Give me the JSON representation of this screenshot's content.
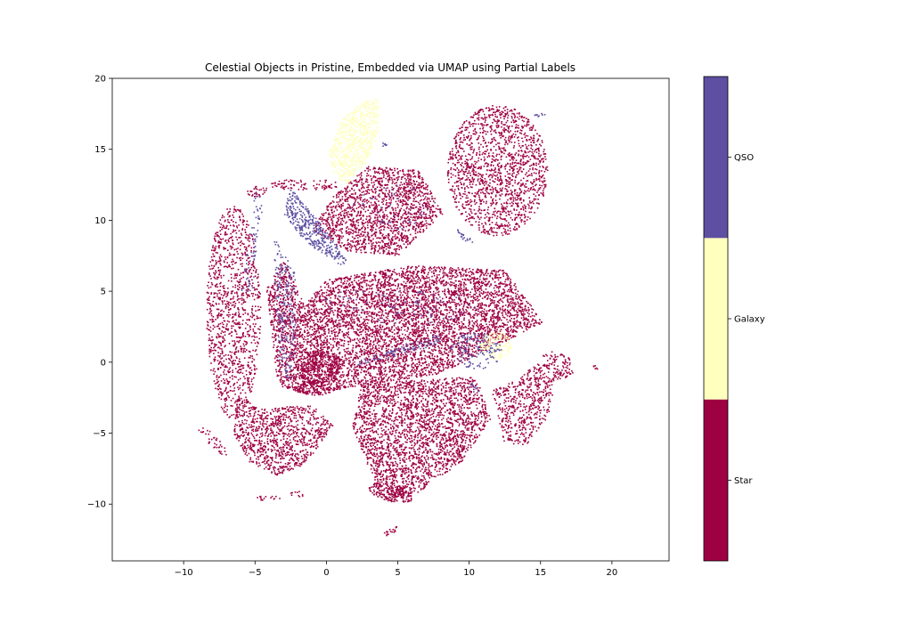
{
  "chart_data": {
    "type": "scatter",
    "title": "Celestial Objects in Pristine, Embedded via UMAP using Partial Labels",
    "xlabel": "",
    "ylabel": "",
    "xlim": [
      -15,
      24
    ],
    "ylim": [
      -14,
      20
    ],
    "x_ticks": [
      -10,
      -5,
      0,
      5,
      10,
      15,
      20
    ],
    "y_ticks": [
      -10,
      -5,
      0,
      5,
      10,
      15,
      20
    ],
    "x_tick_labels": [
      "−10",
      "−5",
      "0",
      "5",
      "10",
      "15",
      "20"
    ],
    "y_tick_labels": [
      "−10",
      "−5",
      "0",
      "5",
      "10",
      "15",
      "20"
    ],
    "grid": false,
    "colorbar": {
      "orientation": "vertical",
      "position": "right",
      "classes": [
        {
          "label": "Star",
          "color": "#9e0142"
        },
        {
          "label": "Galaxy",
          "color": "#ffffbe"
        },
        {
          "label": "QSO",
          "color": "#5e4fa2"
        }
      ]
    },
    "series": [
      {
        "class": "Star",
        "color": "#9e0142",
        "clusters": [
          {
            "shape": "ellipse",
            "center": [
              -6.5,
              3.5
            ],
            "radii": [
              1.9,
              7.5
            ],
            "rotation": 0,
            "density": 0.5
          },
          {
            "shape": "polygon",
            "points": [
              [
                -4.2,
                5.2
              ],
              [
                -3.4,
                -1.6
              ],
              [
                -1.5,
                -2.3
              ],
              [
                8,
                -0.8
              ],
              [
                15.2,
                2.8
              ],
              [
                12.5,
                6.5
              ],
              [
                6,
                6.8
              ],
              [
                0,
                5.8
              ],
              [
                -1.5,
                4
              ],
              [
                -3,
                7.2
              ]
            ],
            "density": 0.9
          },
          {
            "shape": "polygon",
            "points": [
              [
                -1,
                9.3
              ],
              [
                0.5,
                11.8
              ],
              [
                3,
                13.8
              ],
              [
                6.5,
                13.5
              ],
              [
                8.2,
                10.5
              ],
              [
                5,
                7.5
              ],
              [
                1.5,
                7.8
              ]
            ],
            "density": 0.8
          },
          {
            "shape": "ellipse",
            "center": [
              12,
              13.5
            ],
            "radii": [
              3.5,
              4.6
            ],
            "rotation": 0,
            "density": 0.6
          },
          {
            "shape": "polygon",
            "points": [
              [
                -6.2,
                -2.3
              ],
              [
                -4.5,
                -3.3
              ],
              [
                -1,
                -3
              ],
              [
                0.5,
                -4.5
              ],
              [
                -1.5,
                -7.2
              ],
              [
                -3.5,
                -8
              ],
              [
                -5.5,
                -7
              ],
              [
                -6.5,
                -5
              ]
            ],
            "density": 0.75
          },
          {
            "shape": "polygon",
            "points": [
              [
                2.5,
                -1.5
              ],
              [
                10.5,
                -1
              ],
              [
                11.5,
                -4
              ],
              [
                9.5,
                -7
              ],
              [
                6,
                -9.5
              ],
              [
                4,
                -9.8
              ],
              [
                3,
                -7.5
              ],
              [
                1.8,
                -4.5
              ]
            ],
            "density": 0.8
          },
          {
            "shape": "polygon",
            "points": [
              [
                11.6,
                -2
              ],
              [
                13.5,
                -1.2
              ],
              [
                15.5,
                0.8
              ],
              [
                17,
                0.5
              ],
              [
                17.3,
                -0.8
              ],
              [
                16,
                -1.5
              ],
              [
                15.5,
                -4
              ],
              [
                14,
                -5.8
              ],
              [
                12.5,
                -5.8
              ]
            ],
            "density": 0.6
          },
          {
            "shape": "ellipse",
            "center": [
              -0.8,
              -1.8
            ],
            "radii": [
              1.4,
              0.55
            ],
            "rotation": 0,
            "density": 1.0
          },
          {
            "shape": "ellipse",
            "center": [
              -0.5,
              -0.3
            ],
            "radii": [
              1.6,
              1.2
            ],
            "rotation": 0,
            "density": 1.0
          },
          {
            "shape": "ellipse",
            "center": [
              4.5,
              -9.2
            ],
            "radii": [
              1.6,
              0.6
            ],
            "rotation": -15,
            "density": 1.0
          },
          {
            "shape": "ellipse",
            "center": [
              4.5,
              -11.9
            ],
            "radii": [
              0.55,
              0.22
            ],
            "rotation": 30,
            "density": 1.0
          },
          {
            "shape": "ellipse",
            "center": [
              -8,
              -5.5
            ],
            "radii": [
              1.6,
              0.35
            ],
            "rotation": -45,
            "density": 0.4
          },
          {
            "shape": "ellipse",
            "center": [
              -4,
              -9.6
            ],
            "radii": [
              0.9,
              0.2
            ],
            "rotation": 0,
            "density": 0.5
          },
          {
            "shape": "ellipse",
            "center": [
              -2,
              -9.3
            ],
            "radii": [
              0.6,
              0.2
            ],
            "rotation": 0,
            "density": 0.5
          },
          {
            "shape": "ellipse",
            "center": [
              18.8,
              -0.4
            ],
            "radii": [
              0.25,
              0.15
            ],
            "rotation": 0,
            "density": 1.0
          },
          {
            "shape": "ellipse",
            "center": [
              -4.8,
              12
            ],
            "radii": [
              0.8,
              0.4
            ],
            "rotation": 0,
            "density": 0.6
          },
          {
            "shape": "ellipse",
            "center": [
              -1.5,
              12.5
            ],
            "radii": [
              2.5,
              0.4
            ],
            "rotation": 0,
            "density": 0.5
          }
        ]
      },
      {
        "class": "Galaxy",
        "color": "#ffffbe",
        "clusters": [
          {
            "shape": "polygon",
            "points": [
              [
                0.2,
                14.8
              ],
              [
                1,
                17
              ],
              [
                2.5,
                18.3
              ],
              [
                3.7,
                18.6
              ],
              [
                3.6,
                16
              ],
              [
                2.8,
                14
              ],
              [
                1.5,
                12.5
              ],
              [
                0.5,
                13.2
              ]
            ],
            "density": 1.0
          },
          {
            "shape": "ellipse",
            "center": [
              11.9,
              1.2
            ],
            "radii": [
              1.1,
              1.0
            ],
            "rotation": 0,
            "density": 1.0
          }
        ]
      },
      {
        "class": "QSO",
        "color": "#5e4fa2",
        "clusters": [
          {
            "shape": "polygon",
            "points": [
              [
                -2.5,
                12.3
              ],
              [
                -0.2,
                9.5
              ],
              [
                1.6,
                7.1
              ],
              [
                1,
                6.8
              ],
              [
                -1.5,
                8.5
              ],
              [
                -3,
                10.5
              ]
            ],
            "density": 0.9
          },
          {
            "shape": "polygon",
            "points": [
              [
                -3.8,
                9
              ],
              [
                -3.2,
                -1
              ],
              [
                -2.4,
                -1.5
              ],
              [
                -2,
                6
              ]
            ],
            "density": 0.35
          },
          {
            "shape": "polygon",
            "points": [
              [
                2,
                0
              ],
              [
                8,
                2
              ],
              [
                8,
                1.3
              ],
              [
                2,
                -0.3
              ]
            ],
            "density": 0.5
          },
          {
            "shape": "ellipse",
            "center": [
              10.5,
              0.8
            ],
            "radii": [
              1.8,
              1.3
            ],
            "rotation": 0,
            "density": 0.35
          },
          {
            "shape": "ellipse",
            "center": [
              15,
              17.4
            ],
            "radii": [
              0.45,
              0.12
            ],
            "rotation": 0,
            "density": 1.0
          },
          {
            "shape": "ellipse",
            "center": [
              9.7,
              8.8
            ],
            "radii": [
              0.8,
              0.2
            ],
            "rotation": -40,
            "density": 0.8
          },
          {
            "shape": "ellipse",
            "center": [
              4,
              15.3
            ],
            "radii": [
              0.25,
              0.15
            ],
            "rotation": 0,
            "density": 1.0
          },
          {
            "shape": "ellipse",
            "center": [
              10.3,
              -1.8
            ],
            "radii": [
              0.5,
              0.2
            ],
            "rotation": -50,
            "density": 0.6
          },
          {
            "shape": "polygon",
            "points": [
              [
                -6,
                5
              ],
              [
                -5,
                12
              ],
              [
                -4.4,
                11.5
              ],
              [
                -5.2,
                5
              ]
            ],
            "density": 0.25
          },
          {
            "shape": "polygon",
            "points": [
              [
                -1,
                5
              ],
              [
                9,
                5
              ],
              [
                12,
                3
              ],
              [
                5,
                2.5
              ],
              [
                -1,
                3
              ]
            ],
            "density": 0.06
          },
          {
            "shape": "polygon",
            "points": [
              [
                1,
                11
              ],
              [
                5,
                13
              ],
              [
                8,
                11
              ],
              [
                5,
                9
              ]
            ],
            "density": 0.05
          }
        ]
      }
    ]
  }
}
